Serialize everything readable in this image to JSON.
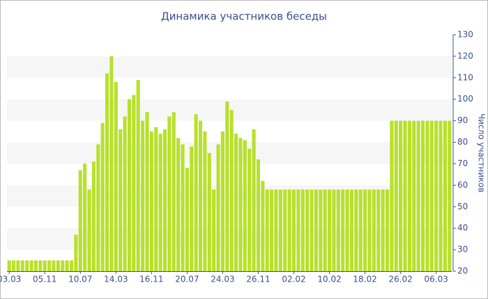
{
  "chart_data": {
    "type": "bar",
    "title": "Динамика участников беседы",
    "y_label": "Число участников",
    "categories": [
      "03.03",
      null,
      null,
      null,
      null,
      null,
      null,
      null,
      "05.11",
      null,
      null,
      null,
      null,
      null,
      null,
      null,
      "10.07",
      null,
      null,
      null,
      null,
      null,
      null,
      null,
      "14.03",
      null,
      null,
      null,
      null,
      null,
      null,
      null,
      "16.11",
      null,
      null,
      null,
      null,
      null,
      null,
      null,
      "20.07",
      null,
      null,
      null,
      null,
      null,
      null,
      null,
      "24.03",
      null,
      null,
      null,
      null,
      null,
      null,
      null,
      "26.11",
      null,
      null,
      null,
      null,
      null,
      null,
      null,
      "02.02",
      null,
      null,
      null,
      null,
      null,
      null,
      null,
      "10.02",
      null,
      null,
      null,
      null,
      null,
      null,
      null,
      "18.02",
      null,
      null,
      null,
      null,
      null,
      null,
      null,
      "26.02",
      null,
      null,
      null,
      null,
      null,
      null,
      null,
      "06.03",
      null,
      null,
      null
    ],
    "values": [
      25,
      25,
      25,
      25,
      25,
      25,
      25,
      25,
      25,
      25,
      25,
      25,
      25,
      25,
      25,
      37,
      67,
      70,
      58,
      71,
      79,
      89,
      112,
      120,
      108,
      86,
      92,
      100,
      102,
      109,
      90,
      94,
      85,
      87,
      84,
      86,
      92,
      94,
      82,
      79,
      68,
      78,
      93,
      90,
      85,
      75,
      58,
      79,
      85,
      99,
      95,
      84,
      82,
      81,
      77,
      86,
      72,
      62,
      58,
      58,
      58,
      58,
      58,
      58,
      58,
      58,
      58,
      58,
      58,
      58,
      58,
      58,
      58,
      58,
      58,
      58,
      58,
      58,
      58,
      58,
      58,
      58,
      58,
      58,
      58,
      58,
      90,
      90,
      90,
      90,
      90,
      90,
      90,
      90,
      90,
      90,
      90,
      90,
      90,
      90
    ],
    "color": "#b8e02c",
    "ylim": [
      20,
      130
    ],
    "yticks": [
      20,
      30,
      40,
      50,
      60,
      70,
      80,
      90,
      100,
      110,
      120,
      130
    ],
    "grid": "bands"
  }
}
